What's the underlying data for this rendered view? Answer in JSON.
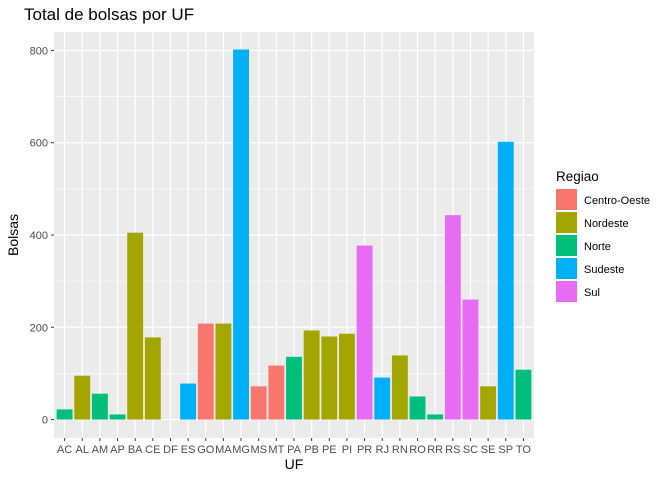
{
  "chart_data": {
    "type": "bar",
    "title": "Total de bolsas por UF",
    "xlabel": "UF",
    "ylabel": "Bolsas",
    "ylim": [
      -40,
      840
    ],
    "yticks": [
      "0",
      "200",
      "400",
      "600",
      "800"
    ],
    "grid": true,
    "legend": {
      "title": "Regiao",
      "placement": "right",
      "entries": [
        {
          "name": "Centro-Oeste",
          "color": "#F8766D"
        },
        {
          "name": "Nordeste",
          "color": "#A3A500"
        },
        {
          "name": "Norte",
          "color": "#00BF7D"
        },
        {
          "name": "Sudeste",
          "color": "#00B0F6"
        },
        {
          "name": "Sul",
          "color": "#E76BF3"
        }
      ]
    },
    "categories": [
      "AC",
      "AL",
      "AM",
      "AP",
      "BA",
      "CE",
      "DF",
      "ES",
      "GO",
      "MA",
      "MG",
      "MS",
      "MT",
      "PA",
      "PB",
      "PE",
      "PI",
      "PR",
      "RJ",
      "RN",
      "RO",
      "RR",
      "RS",
      "SC",
      "SE",
      "SP",
      "TO"
    ],
    "values": [
      22,
      95,
      56,
      11,
      405,
      178,
      0,
      78,
      208,
      208,
      802,
      72,
      117,
      136,
      193,
      180,
      186,
      377,
      91,
      139,
      50,
      11,
      443,
      260,
      72,
      602,
      108
    ],
    "regions": [
      "Norte",
      "Nordeste",
      "Norte",
      "Norte",
      "Nordeste",
      "Nordeste",
      "Centro-Oeste",
      "Sudeste",
      "Centro-Oeste",
      "Nordeste",
      "Sudeste",
      "Centro-Oeste",
      "Centro-Oeste",
      "Norte",
      "Nordeste",
      "Nordeste",
      "Nordeste",
      "Sul",
      "Sudeste",
      "Nordeste",
      "Norte",
      "Norte",
      "Sul",
      "Sul",
      "Nordeste",
      "Sudeste",
      "Norte"
    ]
  }
}
